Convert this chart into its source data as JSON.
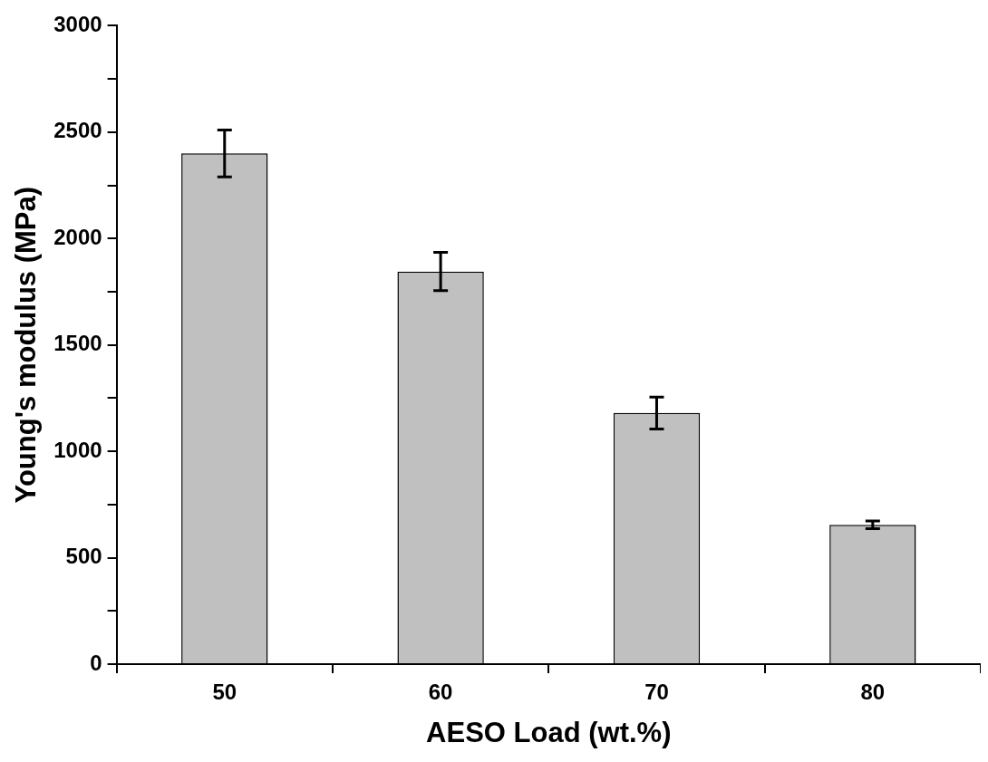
{
  "chart_data": {
    "type": "bar",
    "xlabel": "AESO Load (wt.%)",
    "ylabel": "Young's modulus (MPa)",
    "categories": [
      "50",
      "60",
      "70",
      "80"
    ],
    "values": [
      2400,
      1845,
      1180,
      655
    ],
    "errors": [
      110,
      90,
      75,
      18
    ],
    "color": "#c0c0c0",
    "ylim": [
      0,
      3000
    ],
    "yticks": [
      0,
      {
        "value": 250,
        "label": null
      },
      500,
      {
        "value": 750,
        "label": null
      },
      1000,
      {
        "value": 1250,
        "label": null
      },
      1500,
      {
        "value": 1750,
        "label": null
      },
      2000,
      {
        "value": 2250,
        "label": null
      },
      2500,
      {
        "value": 2750,
        "label": null
      },
      3000
    ],
    "grid": false,
    "legend": false
  }
}
